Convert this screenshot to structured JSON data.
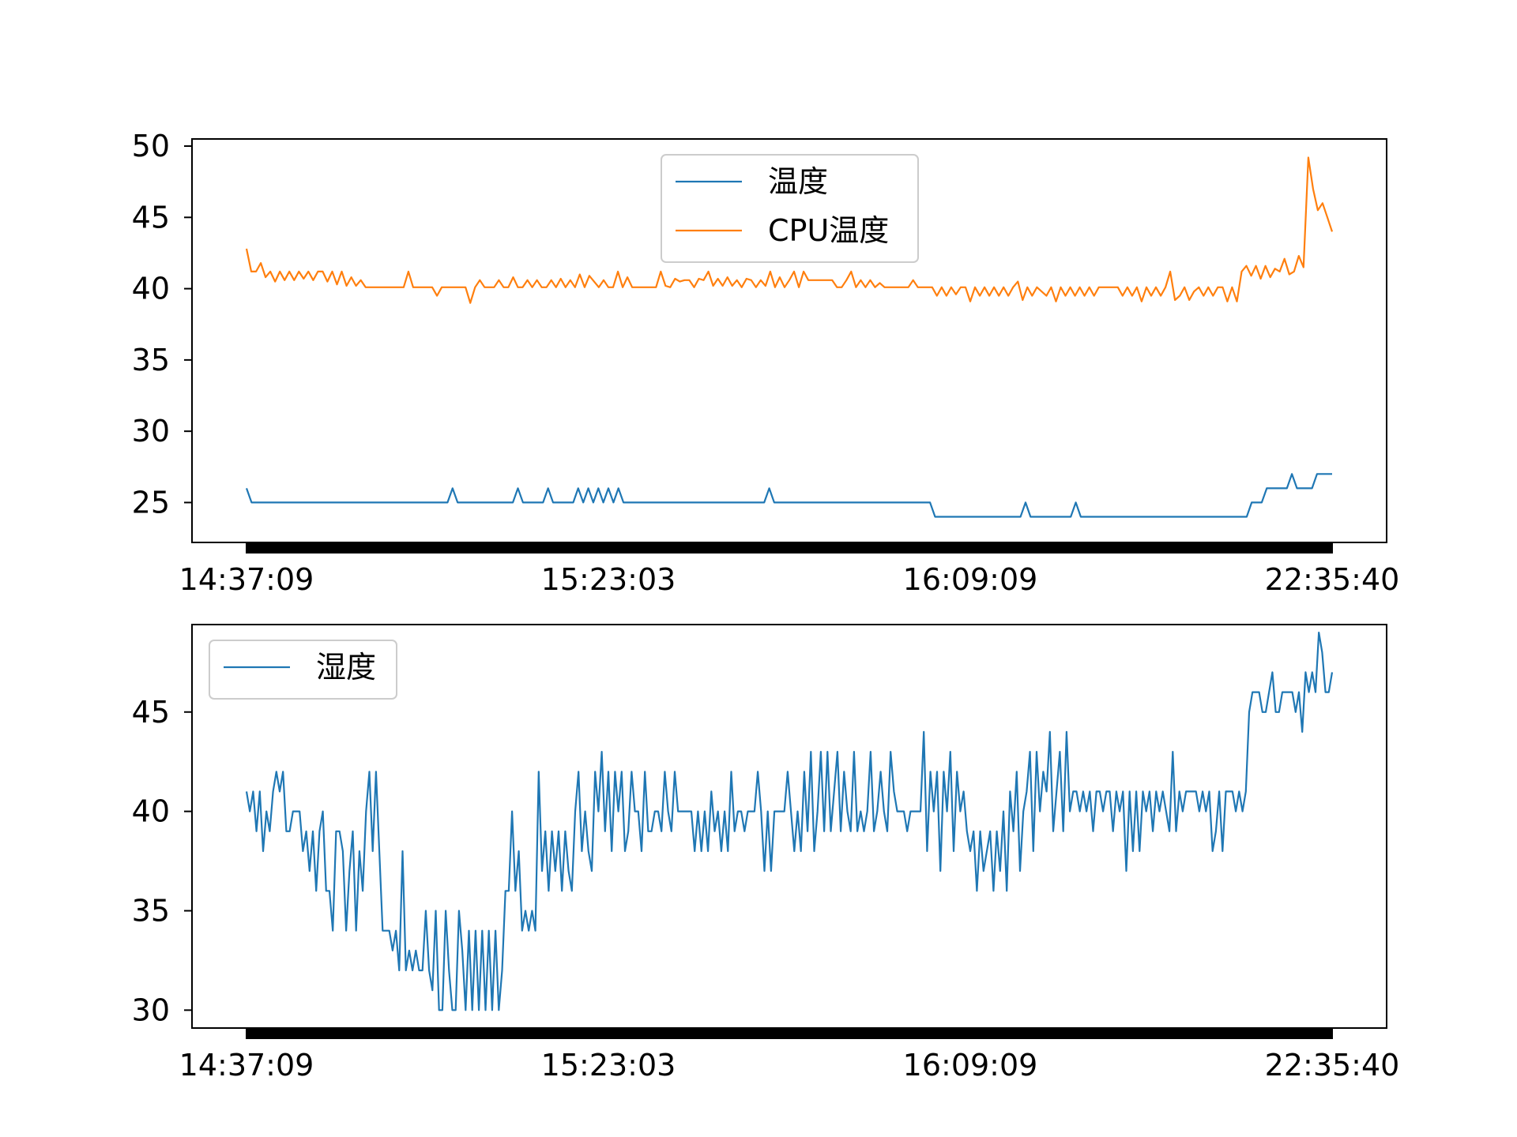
{
  "chart_data": [
    {
      "type": "line",
      "title": "",
      "xlabel": "",
      "ylabel": "",
      "ylim": [
        22.2,
        50.5
      ],
      "yticks": [
        25,
        30,
        35,
        40,
        45,
        50
      ],
      "x_tick_labels": [
        "14:37:09",
        "15:23:03",
        "16:09:09",
        "22:35:40"
      ],
      "legend_position": "top-center",
      "grid": false,
      "series": [
        {
          "name": "温度",
          "color": "#1f77b4",
          "values": [
            26,
            25,
            25,
            25,
            25,
            25,
            25,
            25,
            25,
            25,
            25,
            25,
            25,
            25,
            25,
            25,
            25,
            25,
            25,
            25,
            25,
            25,
            25,
            25,
            25,
            25,
            25,
            25,
            25,
            25,
            25,
            25,
            25,
            25,
            25,
            25,
            25,
            25,
            25,
            25,
            25,
            26,
            25,
            25,
            25,
            25,
            25,
            25,
            25,
            25,
            25,
            25,
            25,
            25,
            26,
            25,
            25,
            25,
            25,
            25,
            26,
            25,
            25,
            25,
            25,
            25,
            26,
            25,
            26,
            25,
            26,
            25,
            26,
            25,
            26,
            25,
            25,
            25,
            25,
            25,
            25,
            25,
            25,
            25,
            25,
            25,
            25,
            25,
            25,
            25,
            25,
            25,
            25,
            25,
            25,
            25,
            25,
            25,
            25,
            25,
            25,
            25,
            25,
            25,
            26,
            25,
            25,
            25,
            25,
            25,
            25,
            25,
            25,
            25,
            25,
            25,
            25,
            25,
            25,
            25,
            25,
            25,
            25,
            25,
            25,
            25,
            25,
            25,
            25,
            25,
            25,
            25,
            25,
            25,
            25,
            25,
            25,
            24,
            24,
            24,
            24,
            24,
            24,
            24,
            24,
            24,
            24,
            24,
            24,
            24,
            24,
            24,
            24,
            24,
            24,
            25,
            24,
            24,
            24,
            24,
            24,
            24,
            24,
            24,
            24,
            25,
            24,
            24,
            24,
            24,
            24,
            24,
            24,
            24,
            24,
            24,
            24,
            24,
            24,
            24,
            24,
            24,
            24,
            24,
            24,
            24,
            24,
            24,
            24,
            24,
            24,
            24,
            24,
            24,
            24,
            24,
            24,
            24,
            24,
            24,
            25,
            25,
            25,
            26,
            26,
            26,
            26,
            26,
            27,
            26,
            26,
            26,
            26,
            27,
            27,
            27,
            27
          ]
        },
        {
          "name": "CPU温度",
          "color": "#ff7f0e",
          "values": [
            42.8,
            41.2,
            41.2,
            41.8,
            40.8,
            41.2,
            40.5,
            41.2,
            40.6,
            41.2,
            40.6,
            41.2,
            40.7,
            41.2,
            40.6,
            41.2,
            41.2,
            40.5,
            41.2,
            40.3,
            41.2,
            40.2,
            40.8,
            40.2,
            40.6,
            40.1,
            40.1,
            40.1,
            40.1,
            40.1,
            40.1,
            40.1,
            40.1,
            40.1,
            41.2,
            40.1,
            40.1,
            40.1,
            40.1,
            40.1,
            39.5,
            40.1,
            40.1,
            40.1,
            40.1,
            40.1,
            40.1,
            39.0,
            40.1,
            40.6,
            40.1,
            40.1,
            40.1,
            40.6,
            40.1,
            40.1,
            40.8,
            40.1,
            40.1,
            40.6,
            40.1,
            40.6,
            40.1,
            40.1,
            40.6,
            40.1,
            40.7,
            40.1,
            40.6,
            40.1,
            41.0,
            40.1,
            40.9,
            40.5,
            40.1,
            40.6,
            40.1,
            40.1,
            41.2,
            40.1,
            40.8,
            40.1,
            40.1,
            40.1,
            40.1,
            40.1,
            40.1,
            41.2,
            40.2,
            40.1,
            40.7,
            40.5,
            40.6,
            40.6,
            40.1,
            40.7,
            40.6,
            41.2,
            40.2,
            40.7,
            40.2,
            40.8,
            40.2,
            40.6,
            40.1,
            40.7,
            40.6,
            40.1,
            40.6,
            40.2,
            41.2,
            40.1,
            40.8,
            40.1,
            40.6,
            41.2,
            40.1,
            41.2,
            40.6,
            40.6,
            40.6,
            40.6,
            40.6,
            40.6,
            40.1,
            40.1,
            40.6,
            41.2,
            40.1,
            40.6,
            40.1,
            40.6,
            40.1,
            40.4,
            40.1,
            40.1,
            40.1,
            40.1,
            40.1,
            40.1,
            40.6,
            40.1,
            40.1,
            40.1,
            40.1,
            39.5,
            40.1,
            39.5,
            40.1,
            39.6,
            40.1,
            40.1,
            39.1,
            40.1,
            39.5,
            40.1,
            39.5,
            40.1,
            39.5,
            40.1,
            39.5,
            40.1,
            40.5,
            39.2,
            40.1,
            39.5,
            40.1,
            39.8,
            39.5,
            40.1,
            39.1,
            40.1,
            39.5,
            40.1,
            39.5,
            40.1,
            39.5,
            40.1,
            39.5,
            40.1,
            40.1,
            40.1,
            40.1,
            40.1,
            39.5,
            40.1,
            39.5,
            40.1,
            39.1,
            40.1,
            39.5,
            40.1,
            39.5,
            40.1,
            41.2,
            39.2,
            39.5,
            40.1,
            39.2,
            39.8,
            40.1,
            39.5,
            40.1,
            39.5,
            40.1,
            40.1,
            39.1,
            40.1,
            39.1,
            41.2,
            41.6,
            40.9,
            41.6,
            40.7,
            41.6,
            40.8,
            41.4,
            41.2,
            42.1,
            41.0,
            41.2,
            42.3,
            41.5,
            49.2,
            47.0,
            45.5,
            46.0,
            45.0,
            44.0
          ]
        }
      ]
    },
    {
      "type": "line",
      "title": "",
      "xlabel": "",
      "ylabel": "",
      "ylim": [
        29.1,
        49.4
      ],
      "yticks": [
        30,
        35,
        40,
        45
      ],
      "x_tick_labels": [
        "14:37:09",
        "15:23:03",
        "16:09:09",
        "22:35:40"
      ],
      "legend_position": "top-left",
      "grid": false,
      "series": [
        {
          "name": "湿度",
          "color": "#1f77b4",
          "values": [
            41,
            40,
            41,
            39,
            41,
            38,
            40,
            39,
            41,
            42,
            41,
            42,
            39,
            39,
            40,
            40,
            40,
            38,
            39,
            37,
            39,
            36,
            39,
            40,
            36,
            36,
            34,
            39,
            39,
            38,
            34,
            37,
            39,
            34,
            38,
            36,
            40,
            42,
            38,
            42,
            38,
            34,
            34,
            34,
            33,
            34,
            32,
            38,
            32,
            33,
            32,
            33,
            32,
            32,
            35,
            32,
            31,
            35,
            30,
            30,
            35,
            32,
            30,
            30,
            35,
            33,
            30,
            34,
            30,
            34,
            30,
            34,
            30,
            34,
            30,
            34,
            30,
            32,
            36,
            36,
            40,
            36,
            38,
            34,
            35,
            34,
            35,
            34,
            42,
            37,
            39,
            36,
            39,
            37,
            39,
            36,
            39,
            37,
            36,
            40,
            42,
            38,
            40,
            38,
            37,
            42,
            40,
            43,
            39,
            42,
            38,
            42,
            40,
            42,
            38,
            39,
            42,
            40,
            40,
            38,
            42,
            39,
            39,
            40,
            40,
            39,
            42,
            40,
            39,
            42,
            40,
            40,
            40,
            40,
            40,
            38,
            40,
            38,
            40,
            38,
            41,
            39,
            40,
            38,
            40,
            38,
            42,
            39,
            40,
            40,
            39,
            40,
            40,
            40,
            42,
            40,
            37,
            40,
            37,
            40,
            40,
            40,
            40,
            42,
            40,
            38,
            40,
            38,
            42,
            39,
            43,
            38,
            40,
            43,
            39,
            43,
            39,
            41,
            43,
            39,
            42,
            40,
            39,
            43,
            39,
            40,
            39,
            40,
            43,
            39,
            40,
            42,
            40,
            39,
            43,
            41,
            40,
            40,
            40,
            39,
            40,
            40,
            40,
            40,
            44,
            38,
            42,
            40,
            42,
            37,
            42,
            40,
            43,
            38,
            42,
            40,
            41,
            39,
            38,
            39,
            36,
            39,
            37,
            38,
            39,
            36,
            39,
            37,
            40,
            36,
            41,
            39,
            42,
            37,
            40,
            41,
            43,
            38,
            43,
            40,
            42,
            41,
            44,
            39,
            41,
            43,
            39,
            44,
            40,
            41,
            41,
            40,
            41,
            40,
            41,
            39,
            41,
            41,
            40,
            41,
            41,
            39,
            41,
            40,
            41,
            37,
            41,
            38,
            41,
            38,
            41,
            40,
            41,
            39,
            41,
            40,
            41,
            40,
            39,
            43,
            39,
            41,
            40,
            41,
            41,
            41,
            41,
            40,
            41,
            40,
            41,
            38,
            39,
            41,
            38,
            41,
            41,
            41,
            40,
            41,
            40,
            41,
            45,
            46,
            46,
            46,
            45,
            45,
            46,
            47,
            45,
            45,
            46,
            46,
            46,
            46,
            45,
            46,
            44,
            47,
            46,
            47,
            46,
            49,
            48,
            46,
            46,
            47
          ]
        }
      ]
    }
  ]
}
